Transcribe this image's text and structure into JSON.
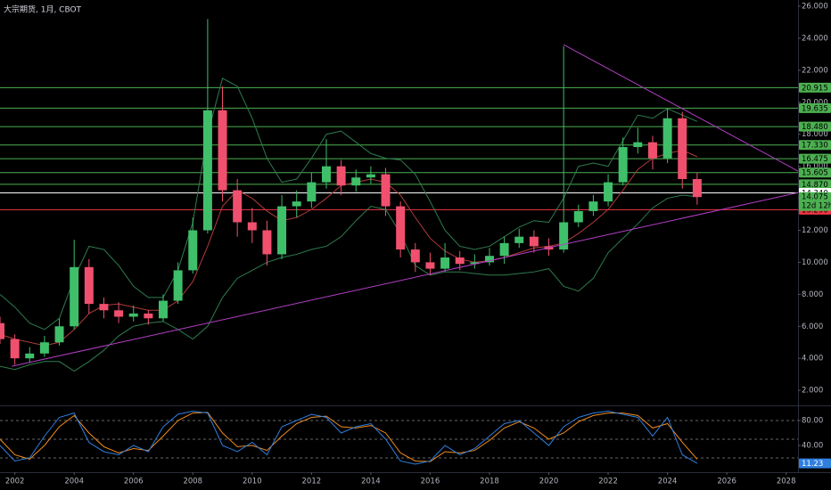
{
  "chart_data": {
    "type": "candlestick",
    "title": "大宗期货, 1月, CBOT",
    "x": [
      2001.5,
      2002.0,
      2002.5,
      2003.0,
      2003.5,
      2004.0,
      2004.5,
      2005.0,
      2005.5,
      2006.0,
      2006.5,
      2007.0,
      2007.5,
      2008.0,
      2008.5,
      2009.0,
      2009.5,
      2010.0,
      2010.5,
      2011.0,
      2011.5,
      2012.0,
      2012.5,
      2013.0,
      2013.5,
      2014.0,
      2014.5,
      2015.0,
      2015.5,
      2016.0,
      2016.5,
      2017.0,
      2017.5,
      2018.0,
      2018.5,
      2019.0,
      2019.5,
      2020.0,
      2020.5,
      2021.0,
      2021.5,
      2022.0,
      2022.5,
      2023.0,
      2023.5,
      2024.0,
      2024.5,
      2025.0
    ],
    "open": [
      6.2,
      5.2,
      4.0,
      4.3,
      5.0,
      6.0,
      9.7,
      7.4,
      7.0,
      6.6,
      6.8,
      6.5,
      7.6,
      9.5,
      12.0,
      19.5,
      14.5,
      12.5,
      12.0,
      10.5,
      13.5,
      13.8,
      15.0,
      16.0,
      14.8,
      15.3,
      15.5,
      13.5,
      10.8,
      10.0,
      9.6,
      10.3,
      9.9,
      10.0,
      10.4,
      11.2,
      11.6,
      11.0,
      10.8,
      12.5,
      13.2,
      13.8,
      15.0,
      17.2,
      17.5,
      16.5,
      19.0,
      15.2
    ],
    "high": [
      6.6,
      5.5,
      4.7,
      5.4,
      6.5,
      11.4,
      10.2,
      7.8,
      7.5,
      7.3,
      7.0,
      8.0,
      10.0,
      12.8,
      25.2,
      21.0,
      15.2,
      13.4,
      12.6,
      14.2,
      14.5,
      15.6,
      17.7,
      16.4,
      15.8,
      16.0,
      15.9,
      13.8,
      11.2,
      10.6,
      11.2,
      10.7,
      10.5,
      10.9,
      11.6,
      12.1,
      12.0,
      11.5,
      23.5,
      13.6,
      14.2,
      15.5,
      17.8,
      18.4,
      17.9,
      19.6,
      19.4,
      15.6
    ],
    "low": [
      4.9,
      3.6,
      3.7,
      4.1,
      4.8,
      5.8,
      6.8,
      6.5,
      6.2,
      6.3,
      6.1,
      6.3,
      7.4,
      9.3,
      11.8,
      13.8,
      11.6,
      11.2,
      9.8,
      10.2,
      12.8,
      13.4,
      14.6,
      14.2,
      14.4,
      14.9,
      12.9,
      10.3,
      9.4,
      9.2,
      9.4,
      9.5,
      9.6,
      9.8,
      9.9,
      10.9,
      10.6,
      10.4,
      10.6,
      12.2,
      12.9,
      13.5,
      14.8,
      16.8,
      15.8,
      16.2,
      14.6,
      13.6
    ],
    "close": [
      5.2,
      4.0,
      4.3,
      5.0,
      6.0,
      9.7,
      7.4,
      7.0,
      6.6,
      6.8,
      6.5,
      7.6,
      9.5,
      12.0,
      19.5,
      14.5,
      12.5,
      12.0,
      10.5,
      13.5,
      13.8,
      15.0,
      16.0,
      14.8,
      15.3,
      15.5,
      13.5,
      10.8,
      10.0,
      9.6,
      10.3,
      9.9,
      10.0,
      10.4,
      11.2,
      11.6,
      11.0,
      10.8,
      12.5,
      13.2,
      13.8,
      15.0,
      17.2,
      17.5,
      16.5,
      19.0,
      15.2,
      14.075
    ],
    "up_color": "#3fbf6a",
    "down_color": "#f0506e",
    "ma": {
      "color": "#b03a3a",
      "values": [
        5.5,
        5.2,
        5.0,
        4.8,
        5.0,
        5.8,
        6.8,
        7.3,
        7.4,
        7.2,
        7.0,
        7.0,
        7.6,
        8.8,
        11.0,
        13.5,
        14.5,
        14.0,
        13.2,
        12.6,
        12.8,
        13.3,
        14.0,
        14.8,
        15.0,
        15.2,
        15.0,
        14.2,
        12.8,
        11.5,
        10.7,
        10.2,
        10.0,
        10.1,
        10.3,
        10.6,
        10.9,
        11.0,
        11.2,
        11.8,
        12.5,
        13.3,
        14.5,
        15.8,
        16.5,
        16.8,
        17.0,
        16.6
      ]
    },
    "bands": {
      "color": "#2e7d4f",
      "upper": [
        8.0,
        7.2,
        6.2,
        5.8,
        6.5,
        9.0,
        11.0,
        10.8,
        9.8,
        8.5,
        7.8,
        7.8,
        9.5,
        12.5,
        18.0,
        21.5,
        21.0,
        19.0,
        16.5,
        15.0,
        15.2,
        16.5,
        18.0,
        18.2,
        17.5,
        16.8,
        16.5,
        16.4,
        15.5,
        13.8,
        12.0,
        11.0,
        10.8,
        11.0,
        11.6,
        12.2,
        12.6,
        12.5,
        14.0,
        16.0,
        16.2,
        16.0,
        17.6,
        19.2,
        19.0,
        19.6,
        19.2,
        18.8
      ],
      "lower": [
        3.5,
        3.3,
        3.6,
        3.8,
        3.8,
        3.2,
        3.8,
        4.5,
        5.4,
        6.0,
        6.2,
        6.3,
        5.8,
        5.2,
        6.0,
        7.8,
        9.0,
        9.5,
        10.0,
        10.3,
        10.5,
        10.8,
        11.0,
        11.6,
        12.6,
        13.5,
        13.3,
        11.8,
        9.8,
        9.2,
        9.4,
        9.4,
        9.3,
        9.2,
        9.2,
        9.3,
        9.4,
        9.6,
        8.5,
        8.2,
        9.0,
        10.6,
        11.5,
        12.4,
        13.4,
        14.0,
        14.2,
        14.1
      ]
    },
    "xlim": [
      2001.5,
      2028.4
    ],
    "xticks": [
      2002,
      2004,
      2006,
      2008,
      2010,
      2012,
      2014,
      2016,
      2018,
      2020,
      2022,
      2024,
      2026,
      2028
    ],
    "ylim": [
      1.06,
      26.39
    ],
    "yticks": [
      {
        "value": 2,
        "label": "2.000"
      },
      {
        "value": 4,
        "label": "4.000"
      },
      {
        "value": 6,
        "label": "6.000"
      },
      {
        "value": 8,
        "label": "8.000"
      },
      {
        "value": 10,
        "label": "10.000"
      },
      {
        "value": 12,
        "label": "12.000"
      },
      {
        "value": 14,
        "label": "14.000"
      },
      {
        "value": 16,
        "label": "16.000"
      },
      {
        "value": 18,
        "label": "18.000"
      },
      {
        "value": 20,
        "label": "20.000"
      },
      {
        "value": 22,
        "label": "22.000"
      },
      {
        "value": 24,
        "label": "24.000"
      },
      {
        "value": 26,
        "label": "26.000"
      }
    ],
    "levels": [
      {
        "color": "#4caf50",
        "values": [
          20.915,
          19.635,
          {
            "value": 18.48,
            "label": "18.480"
          },
          {
            "value": 17.33,
            "label": "17.330"
          },
          16.475,
          15.605,
          {
            "value": 14.87,
            "label": "14.870"
          }
        ]
      },
      {
        "color": "#ffffff",
        "values": [
          {
            "value": 14.34,
            "label": "14.340"
          }
        ]
      },
      {
        "color": "#f23645",
        "values": [
          {
            "value": 13.29,
            "label": "13.290"
          }
        ]
      }
    ],
    "last_price": {
      "value": 14.075,
      "countdown": "12d 12h",
      "color": "#4caf50"
    },
    "trendlines": {
      "color": "#b23fc4",
      "lines": [
        {
          "x": [
            2001.9,
            2029.5
          ],
          "y": [
            3.5,
            14.8
          ]
        },
        {
          "x": [
            2020.5,
            2029.5
          ],
          "y": [
            23.6,
            14.6
          ]
        }
      ]
    },
    "stochastic": {
      "k": {
        "color": "#2f7fe0",
        "values": [
          40,
          15,
          20,
          55,
          85,
          92,
          45,
          30,
          25,
          40,
          30,
          70,
          90,
          95,
          92,
          40,
          30,
          45,
          25,
          70,
          80,
          90,
          85,
          60,
          70,
          75,
          50,
          15,
          10,
          15,
          40,
          25,
          35,
          55,
          75,
          80,
          60,
          40,
          70,
          85,
          92,
          95,
          90,
          85,
          55,
          85,
          25,
          11.23
        ]
      },
      "d": {
        "color": "#f08c1e",
        "values": [
          50,
          25,
          18,
          40,
          70,
          88,
          60,
          38,
          28,
          35,
          32,
          55,
          80,
          92,
          93,
          60,
          38,
          40,
          32,
          55,
          75,
          85,
          87,
          70,
          68,
          72,
          60,
          28,
          15,
          14,
          30,
          28,
          32,
          48,
          68,
          78,
          68,
          50,
          60,
          78,
          88,
          92,
          92,
          88,
          68,
          75,
          45,
          18
        ]
      },
      "ylim": [
        -2.9,
        104.3
      ],
      "yticks": [
        {
          "value": 80,
          "label": "80.00"
        },
        {
          "value": 40,
          "label": "40.00"
        }
      ],
      "levels": [
        80,
        50,
        20
      ]
    }
  }
}
